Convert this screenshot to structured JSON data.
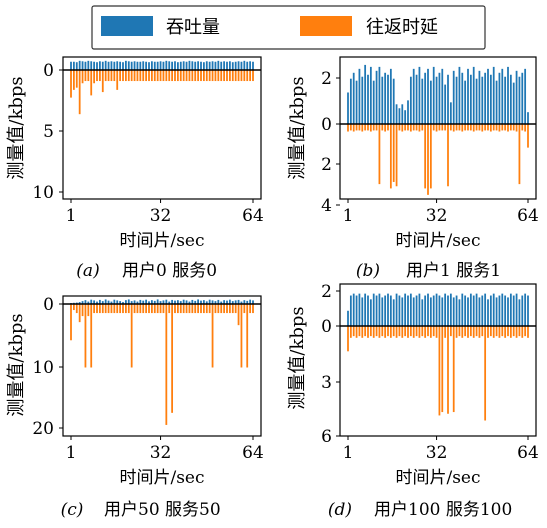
{
  "legend": {
    "placement": "top-center",
    "items": [
      {
        "label": "吞吐量",
        "color": "#1f77b4"
      },
      {
        "label": "往返时延",
        "color": "#ff7f0e"
      }
    ]
  },
  "chart_data": [
    {
      "type": "bar",
      "panel_tag": "(a)",
      "caption": "用户0  服务0",
      "xlabel": "时间片/sec",
      "ylabel": "测量值/kbps",
      "xticks": [
        1,
        32,
        64
      ],
      "upper_ticks": [
        "0"
      ],
      "lower_ticks": [
        "5",
        "10"
      ],
      "upper_ylim": [
        0,
        1.2
      ],
      "lower_ylim": [
        0,
        11.5
      ],
      "series": [
        {
          "name": "吞吐量",
          "color": "#1f77b4",
          "values": [
            0.9,
            0.9,
            0.85,
            1.0,
            0.95,
            0.9,
            1.0,
            0.95,
            0.9,
            0.85,
            0.95,
            0.9,
            1.0,
            0.9,
            0.95,
            0.9,
            0.95,
            0.9,
            0.85,
            1.0,
            0.95,
            0.9,
            0.95,
            0.9,
            0.9,
            0.95,
            0.9,
            0.85,
            0.95,
            0.9,
            0.9,
            0.95,
            0.9,
            1.0,
            0.95,
            0.9,
            0.95,
            0.85,
            0.9,
            0.95,
            0.9,
            1.0,
            0.95,
            0.9,
            0.95,
            0.9,
            0.85,
            0.95,
            0.9,
            0.95,
            0.9,
            1.0,
            0.9,
            0.95,
            0.9,
            0.95,
            0.85,
            0.9,
            0.95,
            0.9,
            1.0,
            0.9,
            0.95,
            0.9
          ]
        },
        {
          "name": "往返时延",
          "color": "#ff7f0e",
          "values": [
            2.5,
            1.8,
            1.6,
            4.0,
            1.2,
            1.0,
            1.0,
            2.3,
            1.2,
            1.0,
            1.0,
            2.0,
            1.0,
            1.0,
            1.0,
            1.0,
            1.8,
            1.0,
            1.0,
            1.0,
            1.0,
            1.0,
            1.0,
            1.0,
            1.0,
            1.0,
            1.0,
            1.0,
            1.0,
            1.0,
            1.0,
            1.0,
            1.0,
            1.0,
            1.0,
            1.0,
            1.0,
            1.0,
            1.0,
            1.0,
            1.0,
            1.0,
            1.0,
            1.0,
            1.0,
            1.0,
            1.0,
            1.0,
            1.0,
            1.0,
            1.0,
            1.0,
            1.0,
            1.0,
            1.0,
            1.0,
            1.0,
            1.0,
            1.0,
            1.0,
            1.0,
            1.0,
            1.0,
            1.0
          ]
        }
      ]
    },
    {
      "type": "bar",
      "panel_tag": "(b)",
      "caption": "用户1  服务1",
      "xlabel": "时间片/sec",
      "ylabel": "测量值/kbps",
      "xticks": [
        1,
        32,
        64
      ],
      "upper_ticks": [
        "2",
        "0"
      ],
      "lower_ticks": [
        "2",
        "4"
      ],
      "upper_ylim": [
        0,
        3.3
      ],
      "lower_ylim": [
        0,
        3.4
      ],
      "series": [
        {
          "name": "吞吐量",
          "color": "#1f77b4",
          "values": [
            1.6,
            2.3,
            2.6,
            2.2,
            2.8,
            2.4,
            3.0,
            2.5,
            2.9,
            2.2,
            2.7,
            2.9,
            2.4,
            2.6,
            2.5,
            2.8,
            2.3,
            1.0,
            0.8,
            1.0,
            0.7,
            1.2,
            2.4,
            2.8,
            2.5,
            2.9,
            2.3,
            2.6,
            2.8,
            2.2,
            2.9,
            2.4,
            2.6,
            2.8,
            2.0,
            2.5,
            1.1,
            2.7,
            2.4,
            2.9,
            2.6,
            2.2,
            2.8,
            2.5,
            2.9,
            2.3,
            2.7,
            2.4,
            2.6,
            2.8,
            2.5,
            2.9,
            2.2,
            2.6,
            2.8,
            2.4,
            2.9,
            2.5,
            2.1,
            2.7,
            2.4,
            2.6,
            2.8,
            0.6
          ]
        },
        {
          "name": "往返时延",
          "color": "#ff7f0e",
          "values": [
            0.35,
            0.3,
            0.35,
            0.3,
            0.3,
            0.35,
            0.3,
            0.3,
            0.35,
            0.3,
            0.3,
            2.8,
            0.3,
            0.35,
            0.3,
            3.0,
            2.7,
            2.9,
            0.3,
            0.35,
            0.3,
            0.3,
            0.35,
            0.3,
            0.3,
            0.35,
            0.3,
            3.0,
            3.3,
            3.0,
            0.3,
            0.35,
            0.3,
            0.3,
            0.3,
            2.9,
            0.3,
            0.35,
            0.3,
            0.3,
            0.35,
            0.3,
            0.3,
            0.3,
            0.35,
            0.3,
            0.3,
            0.35,
            0.3,
            0.3,
            0.35,
            0.3,
            0.3,
            0.35,
            0.3,
            0.3,
            0.35,
            0.3,
            0.3,
            0.35,
            2.8,
            0.3,
            0.35,
            1.1
          ]
        }
      ]
    },
    {
      "type": "bar",
      "panel_tag": "(c)",
      "caption": "用户50  服务50",
      "xlabel": "时间片/sec",
      "ylabel": "测量值/kbps",
      "xticks": [
        1,
        32,
        64
      ],
      "upper_ticks": [
        "0"
      ],
      "lower_ticks": [
        "10",
        "20"
      ],
      "upper_ylim": [
        0,
        2.5
      ],
      "lower_ylim": [
        0,
        21.5
      ],
      "series": [
        {
          "name": "吞吐量",
          "color": "#1f77b4",
          "values": [
            0.4,
            0.5,
            0.6,
            0.8,
            1.2,
            1.6,
            1.0,
            1.8,
            1.5,
            1.0,
            1.7,
            1.2,
            1.9,
            1.4,
            1.0,
            1.8,
            1.5,
            1.2,
            0.8,
            1.6,
            1.9,
            1.2,
            1.5,
            1.0,
            1.7,
            1.4,
            1.8,
            1.1,
            1.6,
            1.3,
            1.9,
            1.2,
            1.5,
            1.8,
            1.0,
            1.7,
            1.4,
            1.6,
            1.2,
            1.8,
            1.5,
            1.0,
            1.7,
            1.3,
            1.9,
            1.4,
            1.6,
            1.1,
            1.8,
            1.5,
            1.2,
            1.7,
            1.0,
            1.6,
            1.4,
            1.8,
            1.2,
            1.5,
            1.7,
            1.0,
            1.6,
            1.3,
            1.8,
            1.5
          ]
        },
        {
          "name": "往返时延",
          "color": "#ff7f0e",
          "values": [
            6.0,
            1.0,
            1.5,
            3.0,
            2.0,
            10.5,
            2.0,
            10.5,
            1.5,
            1.5,
            1.5,
            1.5,
            1.5,
            1.5,
            1.5,
            1.5,
            1.5,
            1.5,
            1.5,
            1.5,
            1.5,
            10.5,
            1.5,
            1.5,
            1.5,
            1.5,
            1.5,
            1.5,
            1.5,
            1.5,
            1.5,
            1.5,
            1.5,
            20.0,
            1.5,
            18.0,
            1.5,
            1.5,
            1.5,
            1.5,
            1.5,
            1.5,
            1.5,
            1.5,
            1.5,
            1.5,
            1.5,
            1.5,
            1.5,
            10.5,
            1.5,
            1.5,
            1.5,
            1.5,
            1.5,
            1.5,
            1.5,
            1.5,
            3.5,
            10.5,
            1.5,
            10.5,
            1.5,
            1.5
          ]
        }
      ]
    },
    {
      "type": "bar",
      "panel_tag": "(d)",
      "caption": "用户100  服务100",
      "xlabel": "时间片/sec",
      "ylabel": "测量值/kbps",
      "xticks": [
        1,
        32,
        64
      ],
      "upper_ticks": [
        "2",
        "0"
      ],
      "lower_ticks": [
        "3",
        "6"
      ],
      "upper_ylim": [
        0,
        2.1
      ],
      "lower_ylim": [
        0,
        6.4
      ],
      "series": [
        {
          "name": "吞吐量",
          "color": "#1f77b4",
          "values": [
            0.8,
            1.6,
            1.7,
            1.6,
            1.7,
            1.5,
            1.7,
            1.6,
            1.4,
            1.7,
            1.6,
            1.7,
            1.5,
            1.6,
            1.7,
            1.6,
            1.4,
            1.7,
            1.6,
            1.5,
            1.7,
            1.6,
            1.7,
            1.5,
            1.6,
            1.7,
            1.4,
            1.6,
            1.7,
            1.5,
            1.6,
            1.7,
            1.6,
            1.5,
            1.7,
            1.6,
            1.7,
            1.5,
            1.6,
            1.4,
            1.7,
            1.6,
            1.5,
            1.7,
            1.6,
            1.7,
            1.5,
            1.6,
            1.7,
            1.4,
            1.6,
            1.7,
            1.5,
            1.6,
            1.7,
            1.6,
            1.5,
            1.7,
            1.6,
            1.7,
            1.4,
            1.6,
            1.7,
            1.6
          ]
        },
        {
          "name": "往返时延",
          "color": "#ff7f0e",
          "values": [
            1.5,
            0.7,
            0.6,
            0.7,
            0.6,
            0.7,
            0.6,
            0.7,
            0.6,
            0.7,
            0.6,
            0.7,
            0.6,
            0.7,
            0.6,
            0.7,
            0.6,
            0.7,
            0.6,
            0.7,
            0.6,
            0.7,
            0.6,
            0.7,
            0.6,
            0.7,
            0.6,
            0.7,
            0.6,
            0.7,
            0.6,
            0.7,
            5.3,
            5.1,
            0.7,
            5.2,
            0.6,
            5.1,
            0.7,
            0.6,
            0.7,
            0.6,
            0.7,
            0.6,
            0.7,
            0.6,
            0.7,
            0.6,
            5.6,
            0.7,
            0.6,
            0.7,
            0.6,
            0.7,
            0.6,
            0.7,
            0.6,
            0.7,
            0.6,
            0.7,
            0.6,
            0.7,
            0.6,
            0.7
          ]
        }
      ]
    }
  ]
}
